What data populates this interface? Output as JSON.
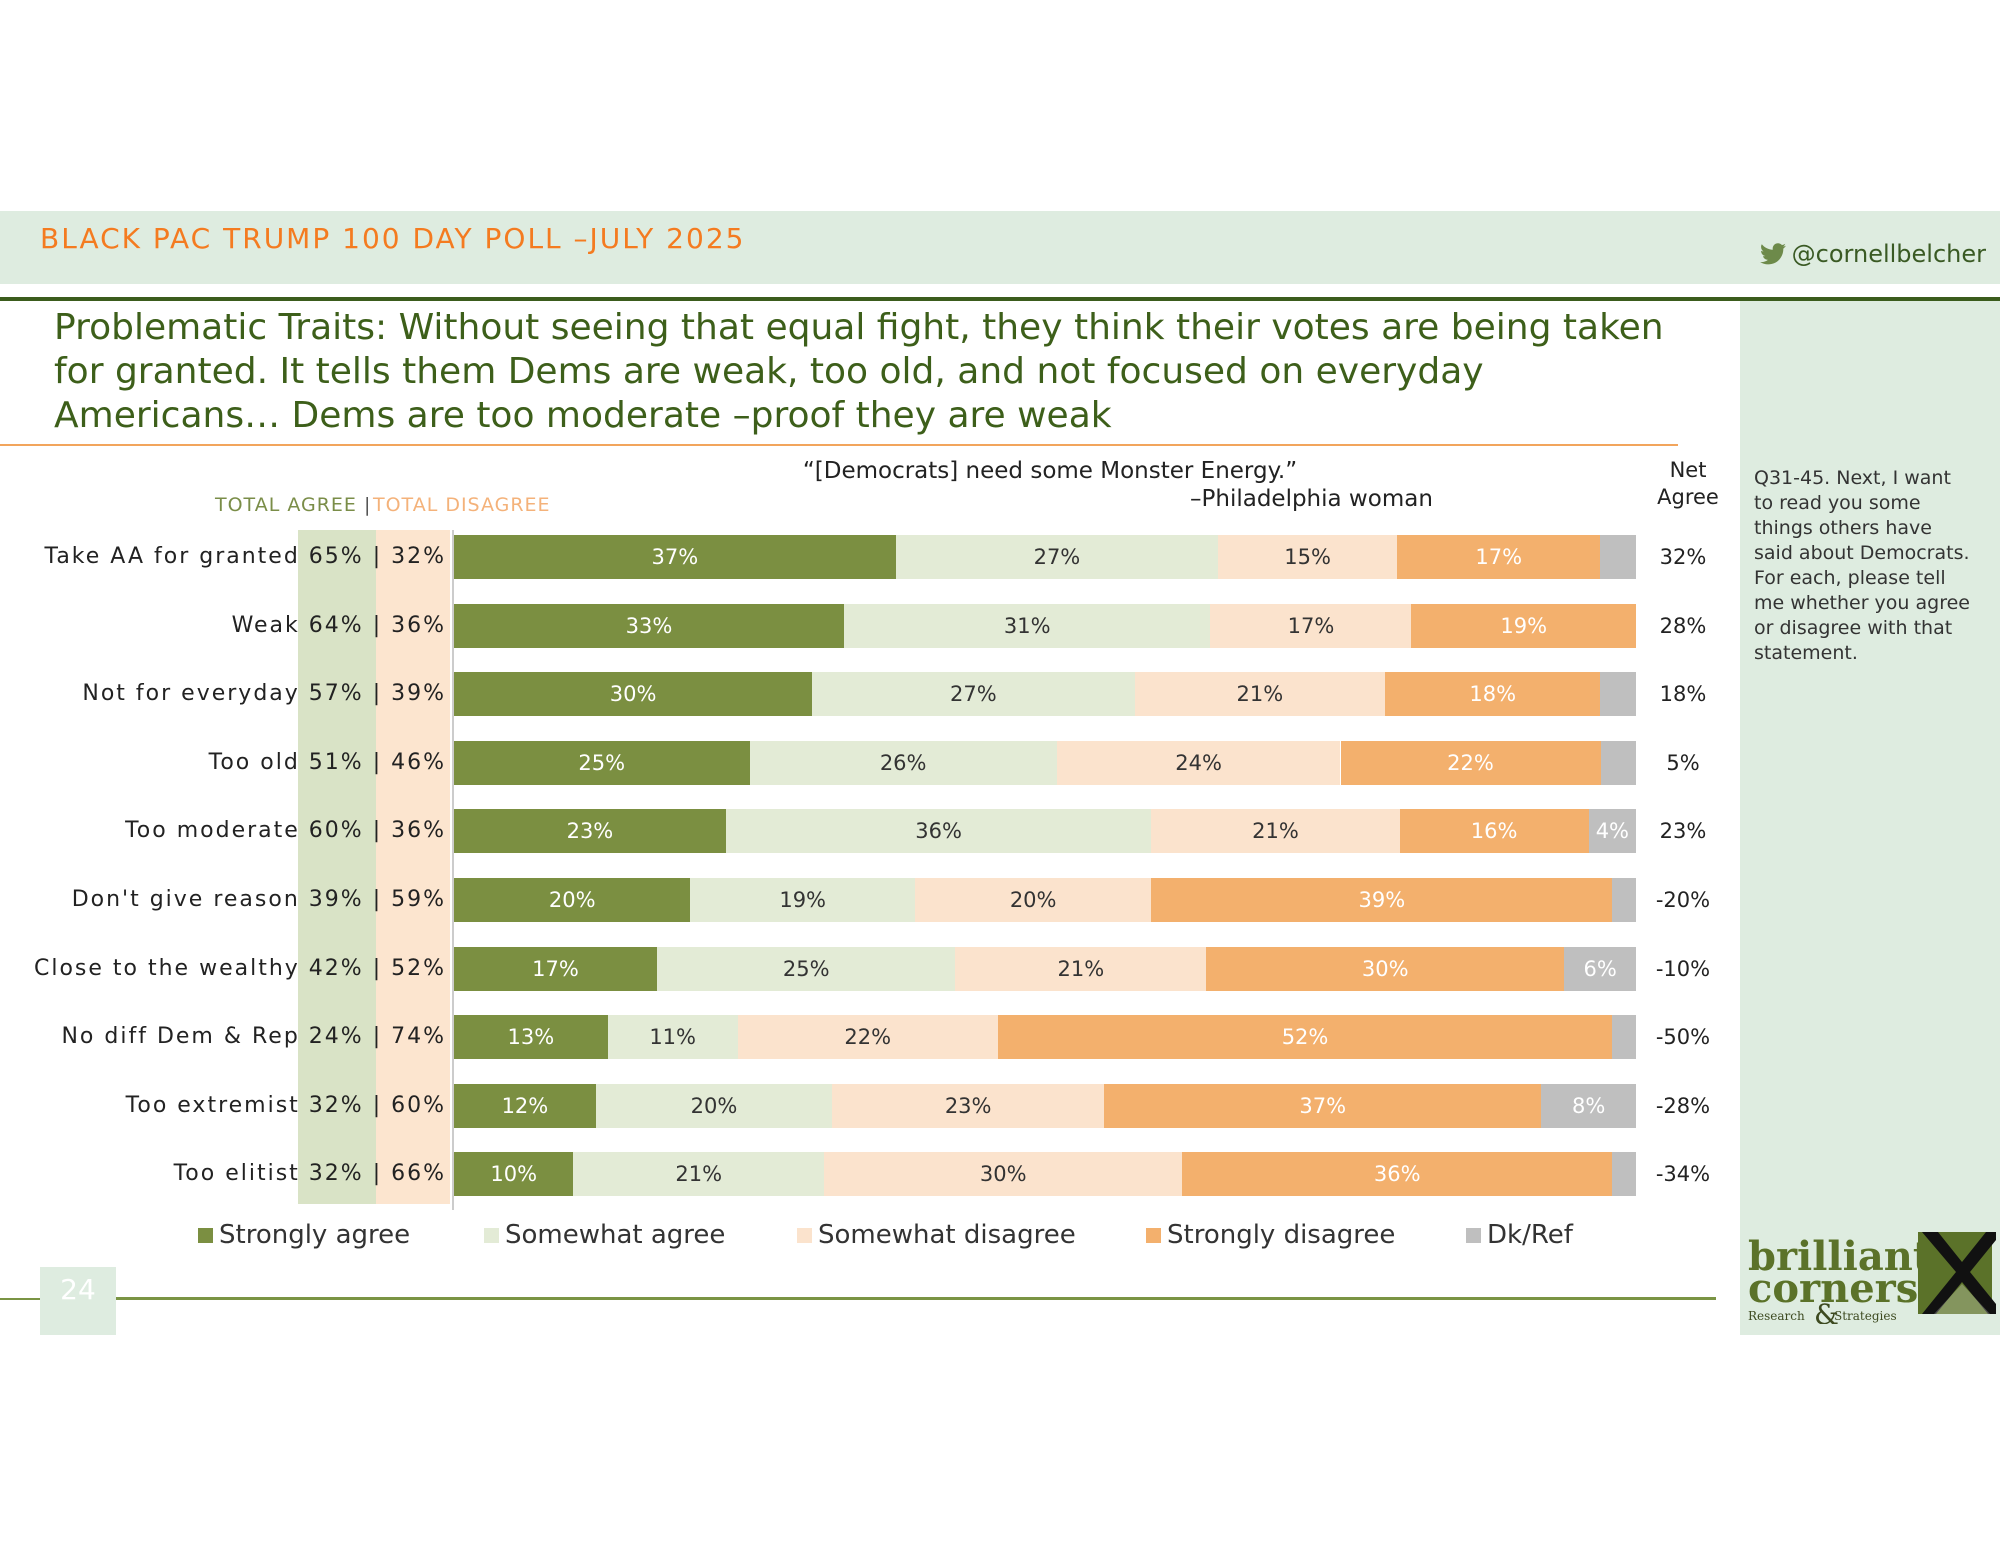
{
  "header": {
    "poll_title": "BLACK PAC TRUMP 100 DAY POLL –JULY 2025",
    "twitter_handle": "@cornellbelcher"
  },
  "slide_title": "Problematic Traits: Without seeing that equal fight, they think their votes are being taken for granted. It tells them Dems are weak, too old, and not focused on everyday Americans… Dems are too moderate –proof they are weak",
  "quote": {
    "text": "“[Democrats] need some Monster Energy.”",
    "attribution": "–Philadelphia woman"
  },
  "side_note": "Q31-45. Next, I want to read you some things others have said about Democrats. For each, please tell me whether you agree or disagree with that statement.",
  "page_number": "24",
  "logo": {
    "line1": "brilliant",
    "line2": "corners",
    "line3": "Research",
    "ampersand": "&",
    "line4": "Strategies"
  },
  "colors": {
    "strongly_agree": "#7b8f41",
    "somewhat_agree": "#e3ebd6",
    "somewhat_disagree": "#fbe3cd",
    "strongly_disagree": "#f3b06d",
    "dk_ref": "#bfbfbf",
    "accent_orange": "#f47b20",
    "title_green": "#3d5f1a"
  },
  "chart_data": {
    "type": "bar",
    "orientation": "horizontal",
    "stacked": true,
    "xlim": [
      0,
      100
    ],
    "headers": {
      "total_agree": "TOTAL AGREE",
      "separator": "|",
      "total_disagree": "TOTAL DISAGREE",
      "net_agree": "Net Agree"
    },
    "categories": [
      "Take AA for granted",
      "Weak",
      "Not for everyday",
      "Too old",
      "Too moderate",
      "Don't give reason",
      "Close to the wealthy",
      "No diff Dem & Rep",
      "Too extremist",
      "Too elitist"
    ],
    "totals_text": [
      "65% | 32%",
      "64% | 36%",
      "57% | 39%",
      "51% | 46%",
      "60% | 36%",
      "39% | 59%",
      "42% | 52%",
      "24% | 74%",
      "32% | 60%",
      "32% | 66%"
    ],
    "series": [
      {
        "name": "Strongly agree",
        "values": [
          37,
          33,
          30,
          25,
          23,
          20,
          17,
          13,
          12,
          10
        ],
        "labels": [
          "37%",
          "33%",
          "30%",
          "25%",
          "23%",
          "20%",
          "17%",
          "13%",
          "12%",
          "10%"
        ]
      },
      {
        "name": "Somewhat agree",
        "values": [
          27,
          31,
          27,
          26,
          36,
          19,
          25,
          11,
          20,
          21
        ],
        "labels": [
          "27%",
          "31%",
          "27%",
          "26%",
          "36%",
          "19%",
          "25%",
          "11%",
          "20%",
          "21%"
        ]
      },
      {
        "name": "Somewhat disagree",
        "values": [
          15,
          17,
          21,
          24,
          21,
          20,
          21,
          22,
          23,
          30
        ],
        "labels": [
          "15%",
          "17%",
          "21%",
          "24%",
          "21%",
          "20%",
          "21%",
          "22%",
          "23%",
          "30%"
        ]
      },
      {
        "name": "Strongly disagree",
        "values": [
          17,
          19,
          18,
          22,
          16,
          39,
          30,
          52,
          37,
          36
        ],
        "labels": [
          "17%",
          "19%",
          "18%",
          "22%",
          "16%",
          "39%",
          "30%",
          "52%",
          "37%",
          "36%"
        ]
      },
      {
        "name": "Dk/Ref",
        "values": [
          3,
          0,
          3,
          3,
          4,
          2,
          6,
          2,
          8,
          2
        ],
        "labels": [
          "",
          "",
          "",
          "",
          "4%",
          "",
          "6%",
          "",
          "8%",
          ""
        ]
      }
    ],
    "net_agree": [
      "32%",
      "28%",
      "18%",
      "5%",
      "23%",
      "-20%",
      "-10%",
      "-50%",
      "-28%",
      "-34%"
    ],
    "legend_position": "bottom"
  }
}
